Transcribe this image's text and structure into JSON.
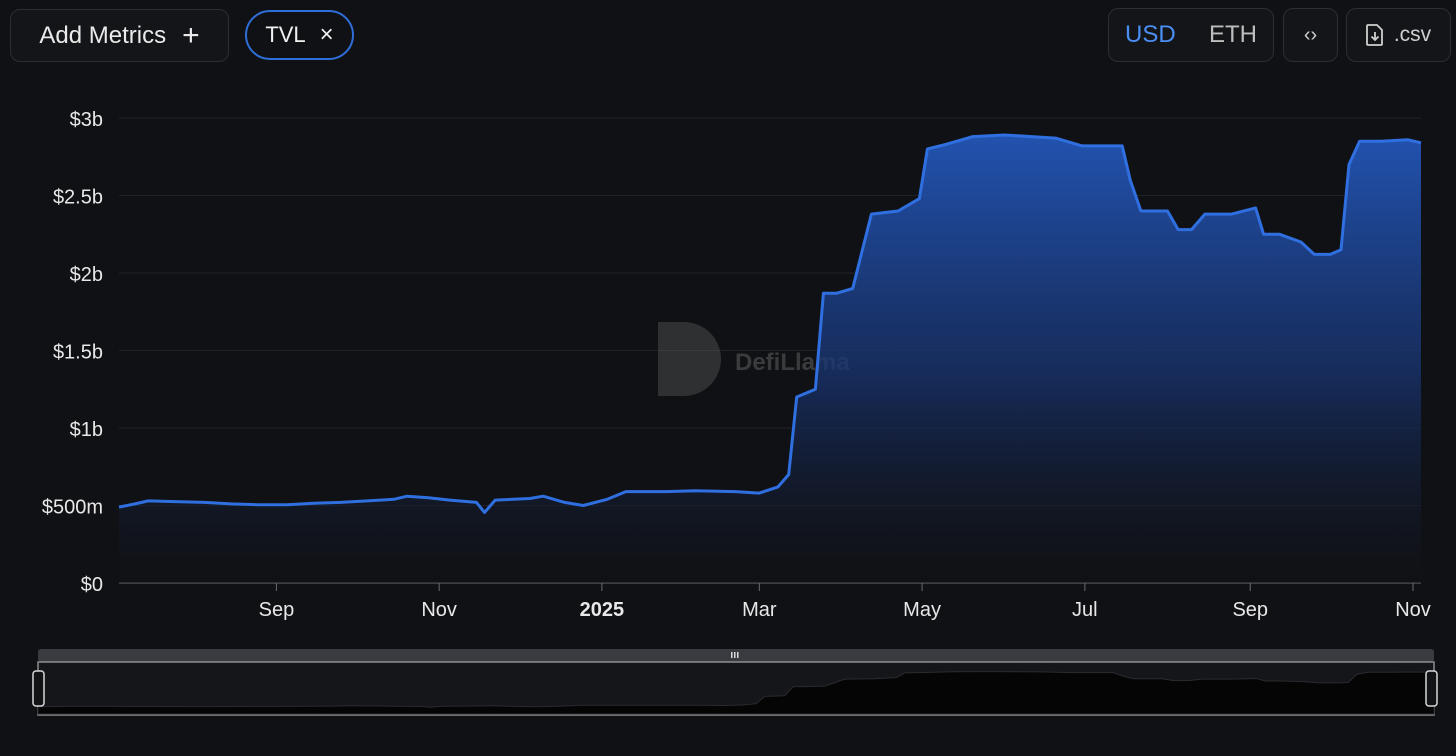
{
  "toolbar": {
    "add_metrics_label": "Add Metrics",
    "add_icon": "+",
    "metric_chip_label": "TVL",
    "metric_chip_close_icon": "×",
    "currency_options": [
      "USD",
      "ETH"
    ],
    "currency_selected": "USD",
    "embed_icon": "‹›",
    "csv_label": ".csv"
  },
  "watermark": "DefiLlama",
  "colors": {
    "line": "#2f6fe0",
    "accent": "#4a8ef2",
    "background": "#101114"
  },
  "chart_data": {
    "type": "area",
    "x_tick_labels": [
      "Sep",
      "Nov",
      "2025",
      "Mar",
      "May",
      "Jul",
      "Sep",
      "Nov"
    ],
    "y_tick_labels": [
      "$0",
      "$500m",
      "$1b",
      "$1.5b",
      "$2b",
      "$2.5b",
      "$3b"
    ],
    "ylim": [
      0,
      3000000000
    ],
    "xlim": [
      "2024-07-04",
      "2025-11-04"
    ],
    "grid": true,
    "series": [
      {
        "points": [
          [
            "2024-07-04",
            490000000
          ],
          [
            "2024-07-10",
            510000000
          ],
          [
            "2024-07-15",
            530000000
          ],
          [
            "2024-07-25",
            525000000
          ],
          [
            "2024-08-05",
            520000000
          ],
          [
            "2024-08-15",
            510000000
          ],
          [
            "2024-08-25",
            505000000
          ],
          [
            "2024-09-05",
            505000000
          ],
          [
            "2024-09-15",
            515000000
          ],
          [
            "2024-09-25",
            520000000
          ],
          [
            "2024-10-05",
            530000000
          ],
          [
            "2024-10-15",
            540000000
          ],
          [
            "2024-10-20",
            560000000
          ],
          [
            "2024-10-28",
            550000000
          ],
          [
            "2024-11-05",
            535000000
          ],
          [
            "2024-11-15",
            520000000
          ],
          [
            "2024-11-18",
            455000000
          ],
          [
            "2024-11-22",
            535000000
          ],
          [
            "2024-12-05",
            545000000
          ],
          [
            "2024-12-10",
            560000000
          ],
          [
            "2024-12-18",
            520000000
          ],
          [
            "2024-12-25",
            500000000
          ],
          [
            "2025-01-03",
            540000000
          ],
          [
            "2025-01-10",
            590000000
          ],
          [
            "2025-01-25",
            590000000
          ],
          [
            "2025-02-05",
            595000000
          ],
          [
            "2025-02-20",
            590000000
          ],
          [
            "2025-03-01",
            580000000
          ],
          [
            "2025-03-08",
            620000000
          ],
          [
            "2025-03-12",
            700000000
          ],
          [
            "2025-03-15",
            1200000000
          ],
          [
            "2025-03-22",
            1250000000
          ],
          [
            "2025-03-25",
            1870000000
          ],
          [
            "2025-03-30",
            1870000000
          ],
          [
            "2025-04-05",
            1900000000
          ],
          [
            "2025-04-12",
            2380000000
          ],
          [
            "2025-04-22",
            2400000000
          ],
          [
            "2025-04-30",
            2480000000
          ],
          [
            "2025-05-03",
            2800000000
          ],
          [
            "2025-05-10",
            2830000000
          ],
          [
            "2025-05-20",
            2880000000
          ],
          [
            "2025-06-01",
            2890000000
          ],
          [
            "2025-06-20",
            2870000000
          ],
          [
            "2025-06-30",
            2820000000
          ],
          [
            "2025-07-15",
            2820000000
          ],
          [
            "2025-07-18",
            2600000000
          ],
          [
            "2025-07-22",
            2400000000
          ],
          [
            "2025-08-01",
            2400000000
          ],
          [
            "2025-08-05",
            2280000000
          ],
          [
            "2025-08-10",
            2280000000
          ],
          [
            "2025-08-15",
            2380000000
          ],
          [
            "2025-08-25",
            2380000000
          ],
          [
            "2025-09-03",
            2420000000
          ],
          [
            "2025-09-06",
            2250000000
          ],
          [
            "2025-09-12",
            2250000000
          ],
          [
            "2025-09-20",
            2200000000
          ],
          [
            "2025-09-25",
            2120000000
          ],
          [
            "2025-10-01",
            2120000000
          ],
          [
            "2025-10-05",
            2150000000
          ],
          [
            "2025-10-08",
            2700000000
          ],
          [
            "2025-10-12",
            2850000000
          ],
          [
            "2025-10-20",
            2850000000
          ],
          [
            "2025-10-30",
            2860000000
          ],
          [
            "2025-11-04",
            2840000000
          ]
        ]
      }
    ]
  }
}
